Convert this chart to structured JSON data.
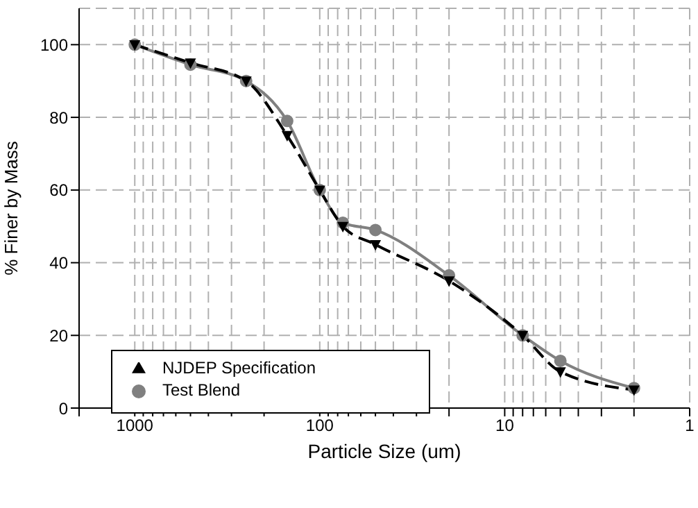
{
  "chart_data": {
    "type": "line",
    "xlabel": "Particle Size (um)",
    "ylabel": "% Finer by Mass",
    "log": "x",
    "grid": true,
    "legend": "bottom left",
    "xlim": [
      2000,
      1
    ],
    "xticks": [
      {
        "value": 2000,
        "label": null
      },
      1000,
      {
        "value": 900,
        "label": null
      },
      {
        "value": 800,
        "label": null
      },
      {
        "value": 700,
        "label": null
      },
      {
        "value": 600,
        "label": null
      },
      {
        "value": 500,
        "label": null
      },
      {
        "value": 400,
        "label": null
      },
      {
        "value": 300,
        "label": null
      },
      {
        "value": 200,
        "label": null
      },
      100,
      {
        "value": 90,
        "label": null
      },
      {
        "value": 80,
        "label": null
      },
      {
        "value": 70,
        "label": null
      },
      {
        "value": 60,
        "label": null
      },
      {
        "value": 50,
        "label": null
      },
      {
        "value": 40,
        "label": null
      },
      {
        "value": 30,
        "label": null
      },
      {
        "value": 20,
        "label": null
      },
      10,
      {
        "value": 9,
        "label": null
      },
      {
        "value": 8,
        "label": null
      },
      {
        "value": 7,
        "label": null
      },
      {
        "value": 6,
        "label": null
      },
      {
        "value": 5,
        "label": null
      },
      {
        "value": 4,
        "label": null
      },
      {
        "value": 3,
        "label": null
      },
      {
        "value": 2,
        "label": null
      },
      1
    ],
    "ylim": [
      0,
      110
    ],
    "yticks": [
      0,
      20,
      40,
      60,
      80,
      100
    ],
    "x": [
      1000,
      500,
      250,
      150,
      100,
      75,
      50,
      20,
      8,
      5,
      2
    ],
    "series": [
      {
        "name": "NJDEP Specification",
        "color": "#000000",
        "marker": "triangle",
        "line_style": "dashed",
        "values": [
          100,
          95,
          90,
          75,
          60,
          50,
          45,
          35,
          20,
          10,
          5
        ]
      },
      {
        "name": "Test Blend",
        "color": "#808080",
        "marker": "circle",
        "line_style": "solid",
        "values": [
          100,
          94.5,
          90,
          79,
          60,
          51,
          49,
          36.5,
          20,
          13,
          5.5
        ]
      }
    ]
  }
}
